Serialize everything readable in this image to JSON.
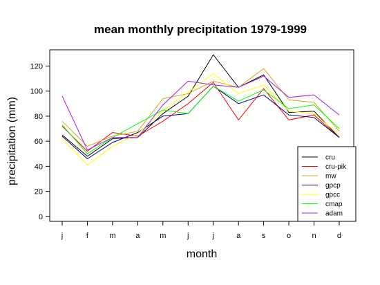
{
  "chart_data": {
    "type": "line",
    "title": "mean monthly precipitation 1979-1999",
    "xlabel": "month",
    "ylabel": "precipitation (mm)",
    "categories": [
      "j",
      "f",
      "m",
      "a",
      "m",
      "j",
      "j",
      "a",
      "s",
      "o",
      "n",
      "d"
    ],
    "yticks": [
      0,
      20,
      40,
      60,
      80,
      100,
      120
    ],
    "ylim": [
      -4,
      133
    ],
    "grid": false,
    "legend_position": "bottom-right",
    "series": [
      {
        "name": "cru",
        "color": "#000000",
        "values": [
          65,
          48,
          62,
          63,
          82,
          96,
          129,
          103,
          113,
          83,
          84,
          63
        ]
      },
      {
        "name": "cru-pik",
        "color": "#ff0000",
        "values": [
          72,
          52,
          67,
          64,
          76,
          90,
          107,
          77,
          102,
          77,
          81,
          63
        ]
      },
      {
        "name": "mw",
        "color": "#daa520",
        "values": [
          76,
          56,
          64,
          68,
          94,
          98,
          108,
          103,
          118,
          93,
          91,
          68
        ]
      },
      {
        "name": "gpcp",
        "color": "#000080",
        "values": [
          64,
          46,
          59,
          67,
          80,
          82,
          104,
          90,
          97,
          81,
          79,
          63
        ]
      },
      {
        "name": "gpcc",
        "color": "#ffff00",
        "values": [
          62,
          41,
          56,
          66,
          84,
          99,
          114,
          98,
          105,
          84,
          82,
          65
        ]
      },
      {
        "name": "cmap",
        "color": "#00ff00",
        "values": [
          73,
          50,
          63,
          74,
          85,
          82,
          104,
          92,
          101,
          86,
          89,
          70
        ]
      },
      {
        "name": "adam",
        "color": "#a020f0",
        "values": [
          96,
          53,
          63,
          63,
          89,
          108,
          105,
          103,
          112,
          95,
          97,
          81
        ]
      }
    ]
  }
}
